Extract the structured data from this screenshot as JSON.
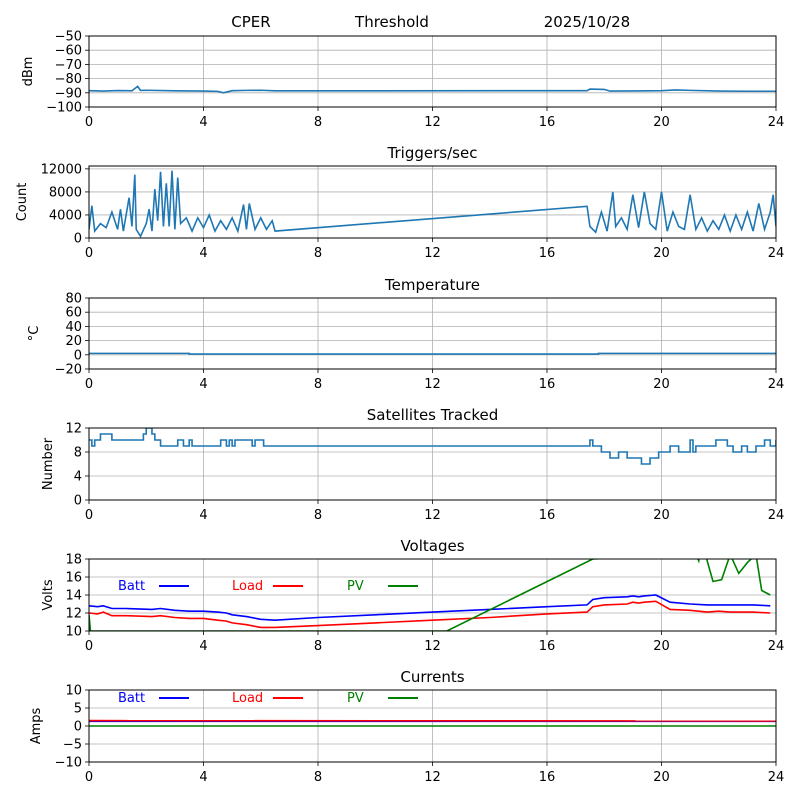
{
  "header": {
    "station": "CPER",
    "mode": "Threshold",
    "date": "2025/10/28"
  },
  "chart_data": [
    {
      "type": "line",
      "title": "",
      "ylabel": "dBm",
      "xlabel": "",
      "xlim": [
        0,
        24
      ],
      "ylim": [
        -100,
        -50
      ],
      "xticks": [
        "0",
        "4",
        "8",
        "12",
        "16",
        "20",
        "24"
      ],
      "yticks": [
        "-50",
        "-60",
        "-70",
        "-80",
        "-90",
        "-100"
      ],
      "grid": true,
      "series": [
        {
          "name": "Threshold",
          "color": "#1f77b4",
          "x": [
            0,
            0.5,
            1,
            1.5,
            1.7,
            1.8,
            2,
            3,
            4,
            4.5,
            4.7,
            5,
            5.5,
            6,
            6.5,
            17.4,
            17.5,
            18,
            18.2,
            19,
            20,
            20.5,
            21,
            22,
            23,
            24
          ],
          "y": [
            -88.5,
            -88.8,
            -88.4,
            -88.6,
            -85.5,
            -88.3,
            -88.2,
            -88.6,
            -88.8,
            -89,
            -90,
            -88.5,
            -88.3,
            -88.2,
            -88.6,
            -88.5,
            -87.4,
            -87.6,
            -88.8,
            -88.7,
            -88.5,
            -88,
            -88.3,
            -88.8,
            -88.9,
            -88.9
          ]
        }
      ]
    },
    {
      "type": "line",
      "title": "Triggers/sec",
      "ylabel": "Count",
      "xlabel": "",
      "xlim": [
        0,
        24
      ],
      "ylim": [
        0,
        12500
      ],
      "xticks": [
        "0",
        "4",
        "8",
        "12",
        "16",
        "20",
        "24"
      ],
      "yticks": [
        "0",
        "4000",
        "8000",
        "12000"
      ],
      "grid": true,
      "series": [
        {
          "name": "Triggers",
          "color": "#1f77b4",
          "x": [
            0,
            0.1,
            0.2,
            0.4,
            0.6,
            0.8,
            1,
            1.1,
            1.2,
            1.4,
            1.5,
            1.6,
            1.65,
            1.8,
            2,
            2.1,
            2.2,
            2.3,
            2.4,
            2.5,
            2.6,
            2.7,
            2.8,
            2.9,
            3,
            3.1,
            3.2,
            3.4,
            3.6,
            3.8,
            4,
            4.2,
            4.4,
            4.6,
            4.8,
            5,
            5.2,
            5.4,
            5.5,
            5.6,
            5.8,
            6,
            6.2,
            6.4,
            6.5,
            17.4,
            17.5,
            17.7,
            17.9,
            18.1,
            18.3,
            18.4,
            18.6,
            18.8,
            19,
            19.2,
            19.4,
            19.6,
            19.8,
            20,
            20.2,
            20.4,
            20.6,
            20.8,
            21,
            21.2,
            21.4,
            21.6,
            21.8,
            22,
            22.2,
            22.4,
            22.6,
            22.8,
            23,
            23.2,
            23.4,
            23.6,
            23.8,
            23.9,
            24
          ],
          "y": [
            1500,
            5600,
            1200,
            2500,
            1800,
            4500,
            1500,
            5000,
            1200,
            7000,
            2000,
            11000,
            1500,
            300,
            2500,
            5000,
            1200,
            8500,
            3000,
            11500,
            2000,
            9500,
            2000,
            11700,
            1500,
            10500,
            2500,
            3500,
            1200,
            3500,
            1800,
            4000,
            1200,
            3000,
            1500,
            3500,
            1200,
            5800,
            1500,
            6000,
            1500,
            3500,
            1500,
            3000,
            1200,
            5500,
            2000,
            1000,
            4500,
            1200,
            8000,
            2000,
            3500,
            1500,
            7500,
            1800,
            8000,
            2500,
            1500,
            8000,
            1200,
            4500,
            2000,
            1500,
            7500,
            1500,
            3500,
            1200,
            3000,
            1500,
            4000,
            1200,
            4000,
            1500,
            4500,
            1200,
            6000,
            1500,
            4500,
            7500,
            2000
          ]
        }
      ]
    },
    {
      "type": "line",
      "title": "Temperature",
      "ylabel": "°C",
      "xlabel": "",
      "xlim": [
        0,
        24
      ],
      "ylim": [
        -20,
        80
      ],
      "xticks": [
        "0",
        "4",
        "8",
        "12",
        "16",
        "20",
        "24"
      ],
      "yticks": [
        "-20",
        "0",
        "20",
        "40",
        "60",
        "80"
      ],
      "grid": true,
      "series": [
        {
          "name": "Temperature",
          "color": "#1f77b4",
          "x": [
            0,
            3.5,
            3.5,
            17.8,
            17.8,
            24
          ],
          "y": [
            2,
            2,
            1,
            1,
            2,
            2
          ]
        }
      ]
    },
    {
      "type": "line",
      "title": "Satellites Tracked",
      "ylabel": "Number",
      "xlabel": "",
      "xlim": [
        0,
        24
      ],
      "ylim": [
        0,
        12
      ],
      "xticks": [
        "0",
        "4",
        "8",
        "12",
        "16",
        "20",
        "24"
      ],
      "yticks": [
        "0",
        "4",
        "8",
        "12"
      ],
      "grid": true,
      "series": [
        {
          "name": "Satellites",
          "color": "#1f77b4",
          "step": true,
          "x": [
            0,
            0.1,
            0.2,
            0.4,
            0.8,
            1.9,
            2.0,
            2.2,
            2.3,
            2.5,
            3.1,
            3.3,
            3.5,
            3.6,
            4.6,
            4.8,
            4.9,
            5.0,
            5.1,
            5.2,
            5.7,
            5.8,
            6.1,
            17.5,
            17.6,
            17.9,
            18.2,
            18.5,
            18.8,
            19.3,
            19.6,
            19.9,
            20.3,
            20.6,
            21.0,
            21.1,
            21.2,
            21.9,
            22.3,
            22.5,
            22.8,
            23.0,
            23.3,
            23.6,
            23.8,
            24
          ],
          "y": [
            10,
            9,
            10,
            11,
            10,
            11,
            12,
            11,
            10,
            9,
            10,
            9,
            10,
            9,
            10,
            9,
            10,
            9,
            10,
            10,
            9,
            10,
            9,
            10,
            9,
            8,
            7,
            8,
            7,
            6,
            7,
            8,
            9,
            8,
            10,
            8,
            9,
            10,
            9,
            8,
            9,
            8,
            9,
            10,
            9,
            10
          ]
        }
      ]
    },
    {
      "type": "line",
      "title": "Voltages",
      "ylabel": "Volts",
      "xlabel": "",
      "xlim": [
        0,
        24
      ],
      "ylim": [
        10,
        18
      ],
      "xticks": [
        "0",
        "4",
        "8",
        "12",
        "16",
        "20",
        "24"
      ],
      "yticks": [
        "10",
        "12",
        "14",
        "16",
        "18"
      ],
      "grid": true,
      "legend": [
        "Batt",
        "Load",
        "PV"
      ],
      "legend_placement": "top-left",
      "series": [
        {
          "name": "Batt",
          "color": "#0000ff",
          "x": [
            0,
            0.3,
            0.5,
            0.8,
            1.3,
            2.2,
            2.5,
            3,
            3.5,
            4,
            4.5,
            4.8,
            5,
            5.5,
            6,
            6.5,
            8,
            10,
            12,
            14,
            16,
            17.4,
            17.6,
            18,
            18.8,
            19,
            19.2,
            19.4,
            19.8,
            20.3,
            21,
            21.6,
            22,
            22.4,
            22.8,
            23.2,
            23.8
          ],
          "y": [
            12.8,
            12.7,
            12.8,
            12.5,
            12.5,
            12.4,
            12.5,
            12.3,
            12.2,
            12.2,
            12.1,
            12.0,
            11.8,
            11.6,
            11.3,
            11.2,
            11.5,
            11.8,
            12.1,
            12.4,
            12.7,
            12.9,
            13.5,
            13.7,
            13.8,
            13.9,
            13.8,
            13.9,
            14.0,
            13.2,
            13.0,
            12.9,
            12.9,
            12.9,
            12.9,
            12.9,
            12.8
          ]
        },
        {
          "name": "Load",
          "color": "#ff0000",
          "x": [
            0,
            0.3,
            0.5,
            0.8,
            1.3,
            2.2,
            2.5,
            3,
            3.5,
            4,
            4.5,
            4.8,
            5,
            5.5,
            6,
            6.5,
            8,
            10,
            12,
            14,
            16,
            17.4,
            17.6,
            18,
            18.8,
            19,
            19.2,
            19.4,
            19.8,
            20.3,
            21,
            21.6,
            22,
            22.4,
            22.8,
            23.2,
            23.8
          ],
          "y": [
            12.0,
            11.9,
            12.1,
            11.7,
            11.7,
            11.6,
            11.7,
            11.5,
            11.4,
            11.4,
            11.2,
            11.1,
            10.9,
            10.7,
            10.4,
            10.4,
            10.6,
            10.9,
            11.2,
            11.5,
            11.9,
            12.1,
            12.7,
            12.9,
            13.0,
            13.2,
            13.1,
            13.2,
            13.3,
            12.4,
            12.3,
            12.1,
            12.2,
            12.1,
            12.1,
            12.1,
            12.0
          ]
        },
        {
          "name": "PV",
          "color": "#008000",
          "x": [
            0,
            0.05,
            12.5,
            17.6,
            21.2,
            21.3,
            21.4,
            21.8,
            22.1,
            22.4,
            22.7,
            23.0,
            23.3,
            23.5,
            23.8
          ],
          "y": [
            11.8,
            10,
            10,
            18,
            18.5,
            17.8,
            20,
            15.5,
            15.7,
            18.5,
            16.4,
            17.6,
            18.5,
            14.5,
            14
          ]
        }
      ]
    },
    {
      "type": "line",
      "title": "Currents",
      "ylabel": "Amps",
      "xlabel": "",
      "xlim": [
        0,
        24
      ],
      "ylim": [
        -10,
        10
      ],
      "xticks": [
        "0",
        "4",
        "8",
        "12",
        "16",
        "20",
        "24"
      ],
      "yticks": [
        "-10",
        "-5",
        "0",
        "5",
        "10"
      ],
      "grid": true,
      "legend": [
        "Batt",
        "Load",
        "PV"
      ],
      "legend_placement": "top-left",
      "series": [
        {
          "name": "Batt",
          "color": "#0000ff",
          "x": [
            0,
            24
          ],
          "y": [
            1.3,
            1.3
          ]
        },
        {
          "name": "Load",
          "color": "#ff0000",
          "x": [
            0,
            24
          ],
          "y": [
            1.5,
            1.4
          ]
        },
        {
          "name": "PV",
          "color": "#008000",
          "x": [
            0,
            24
          ],
          "y": [
            0,
            0
          ]
        }
      ]
    }
  ]
}
